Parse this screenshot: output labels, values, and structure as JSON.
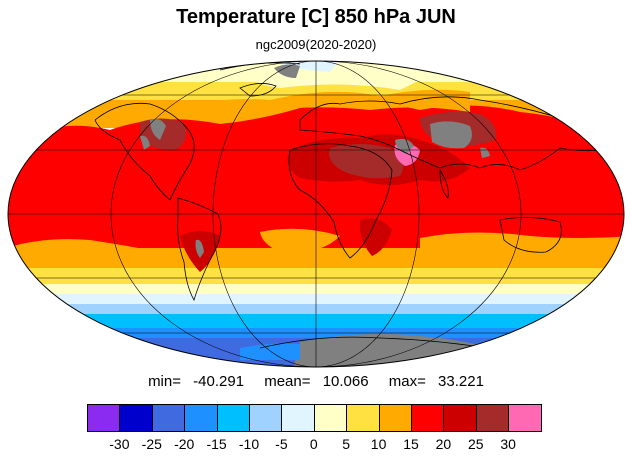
{
  "title": "Temperature [C] 850 hPa JUN",
  "subtitle": "ngc2009(2020-2020)",
  "stats": {
    "min_label": "min=",
    "min": "-40.291",
    "mean_label": "mean=",
    "mean": "10.066",
    "max_label": "max=",
    "max": "33.221"
  },
  "colorbar": {
    "colors": [
      "#8c2bf0",
      "#0000cd",
      "#3f6ae0",
      "#1e90ff",
      "#00bfff",
      "#a0d2ff",
      "#e0f5ff",
      "#ffffc8",
      "#ffe141",
      "#ffaa00",
      "#ff0000",
      "#cd0000",
      "#a52a2a",
      "#ff69b4"
    ],
    "ticks": [
      "-30",
      "-25",
      "-20",
      "-15",
      "-10",
      "-5",
      "0",
      "5",
      "10",
      "15",
      "20",
      "25",
      "30"
    ]
  },
  "chart_data": {
    "type": "heatmap",
    "projection": "mollweide",
    "variable": "Temperature [C] 850 hPa",
    "month": "JUN",
    "levels": [
      -30,
      -25,
      -20,
      -15,
      -10,
      -5,
      0,
      5,
      10,
      15,
      20,
      25,
      30
    ],
    "min": -40.291,
    "mean": 10.066,
    "max": 33.221,
    "missing_color": "#808080",
    "graticule": true
  }
}
